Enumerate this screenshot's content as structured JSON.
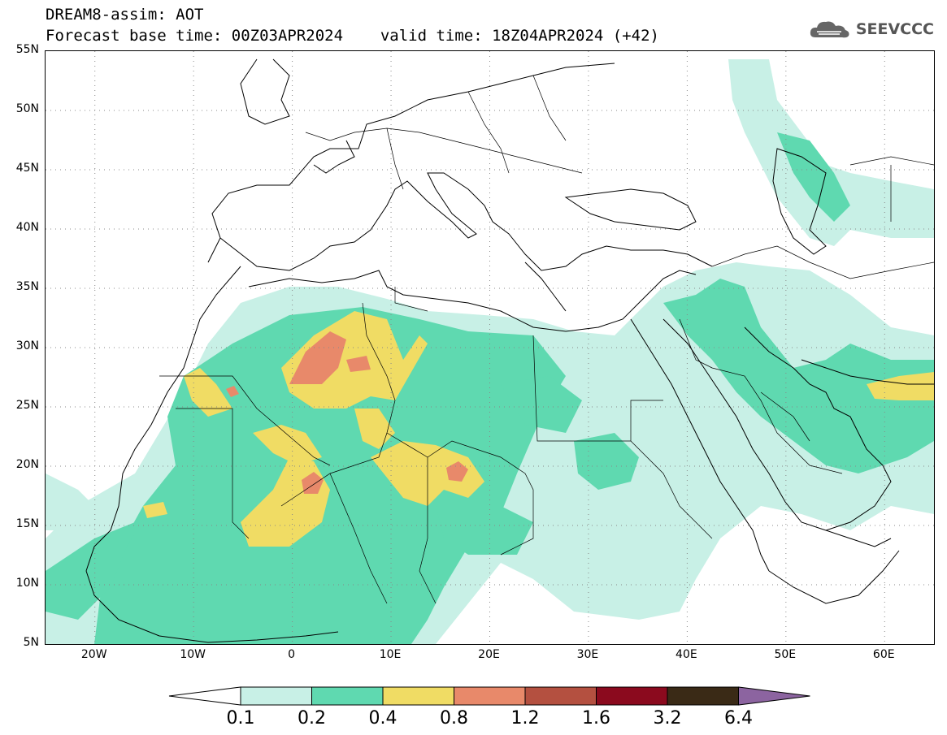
{
  "header": {
    "title": "DREAM8-assim: AOT",
    "forecast_line": "Forecast base time: 00Z03APR2024",
    "valid_line": "valid time: 18Z04APR2024 (+42)",
    "logo_text": "SEEVCCC",
    "logo_icon": "cloud-icon"
  },
  "map": {
    "lon_range": [
      -25,
      65
    ],
    "lat_range": [
      5,
      55
    ],
    "lat_labels": [
      "55N",
      "50N",
      "45N",
      "40N",
      "35N",
      "30N",
      "25N",
      "20N",
      "15N",
      "10N",
      "5N"
    ],
    "lon_labels": [
      "20W",
      "10W",
      "0",
      "10E",
      "20E",
      "30E",
      "40E",
      "50E",
      "60E"
    ],
    "grid": "dotted"
  },
  "legend": {
    "labels": [
      "0.1",
      "0.2",
      "0.4",
      "0.8",
      "1.2",
      "1.6",
      "3.2",
      "6.4"
    ],
    "colors": [
      "#c8f0e6",
      "#5fd9b0",
      "#f0dc64",
      "#e8896a",
      "#b45040",
      "#8b0a1e",
      "#3a2a16",
      "#8c64a0"
    ]
  }
}
